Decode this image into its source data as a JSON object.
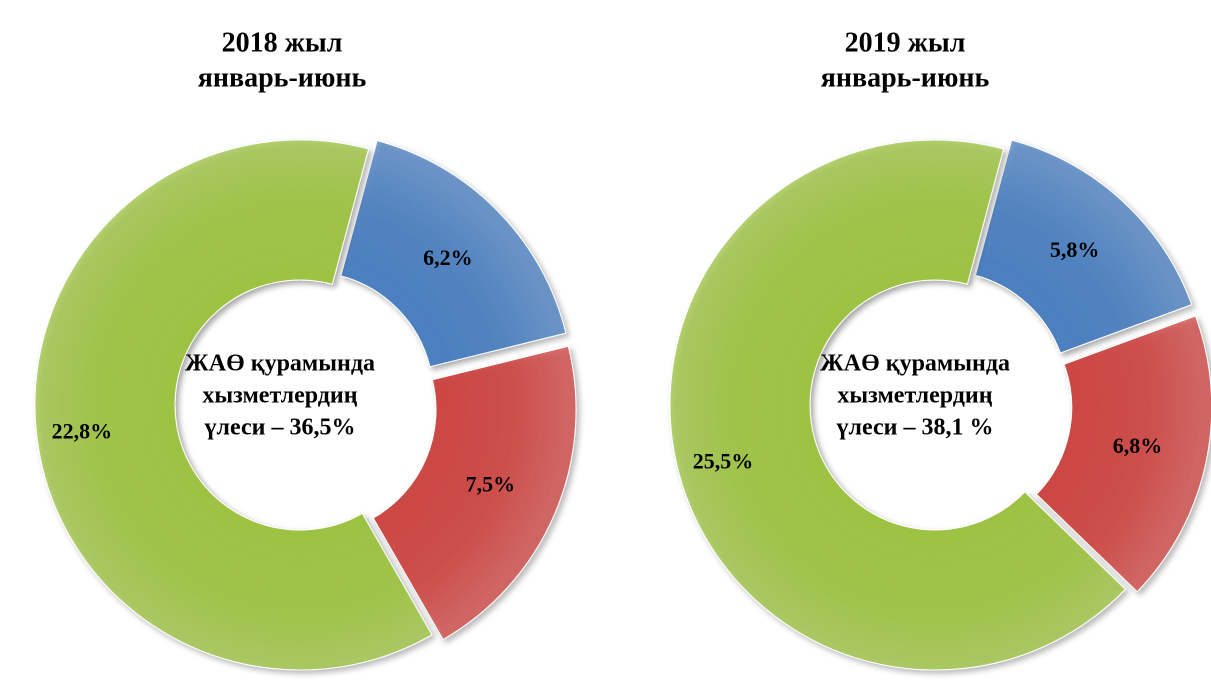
{
  "chart_data": [
    {
      "type": "donut",
      "title": "2018 жыл",
      "subtitle": "январь-июнь",
      "annotation": [
        "ЖАӨ қурамында",
        "хызметлердиң",
        "үлеси – 36,5%"
      ],
      "values": [
        6.2,
        7.5,
        22.8
      ],
      "value_labels": [
        "6,2%",
        "7,5%",
        "22,8%"
      ],
      "colors": [
        "#4a7ebf",
        "#cc4542",
        "#9dc243"
      ]
    },
    {
      "type": "donut",
      "title": "2019 жыл",
      "subtitle": "январь-июнь",
      "annotation": [
        "ЖАӨ қурамында",
        "хызметлердиң",
        "үлеси – 38,1 %"
      ],
      "values": [
        5.8,
        6.8,
        25.5
      ],
      "value_labels": [
        "5,8%",
        "6,8%",
        "25,5%"
      ],
      "colors": [
        "#4a7ebf",
        "#cc4542",
        "#9dc243"
      ]
    }
  ]
}
